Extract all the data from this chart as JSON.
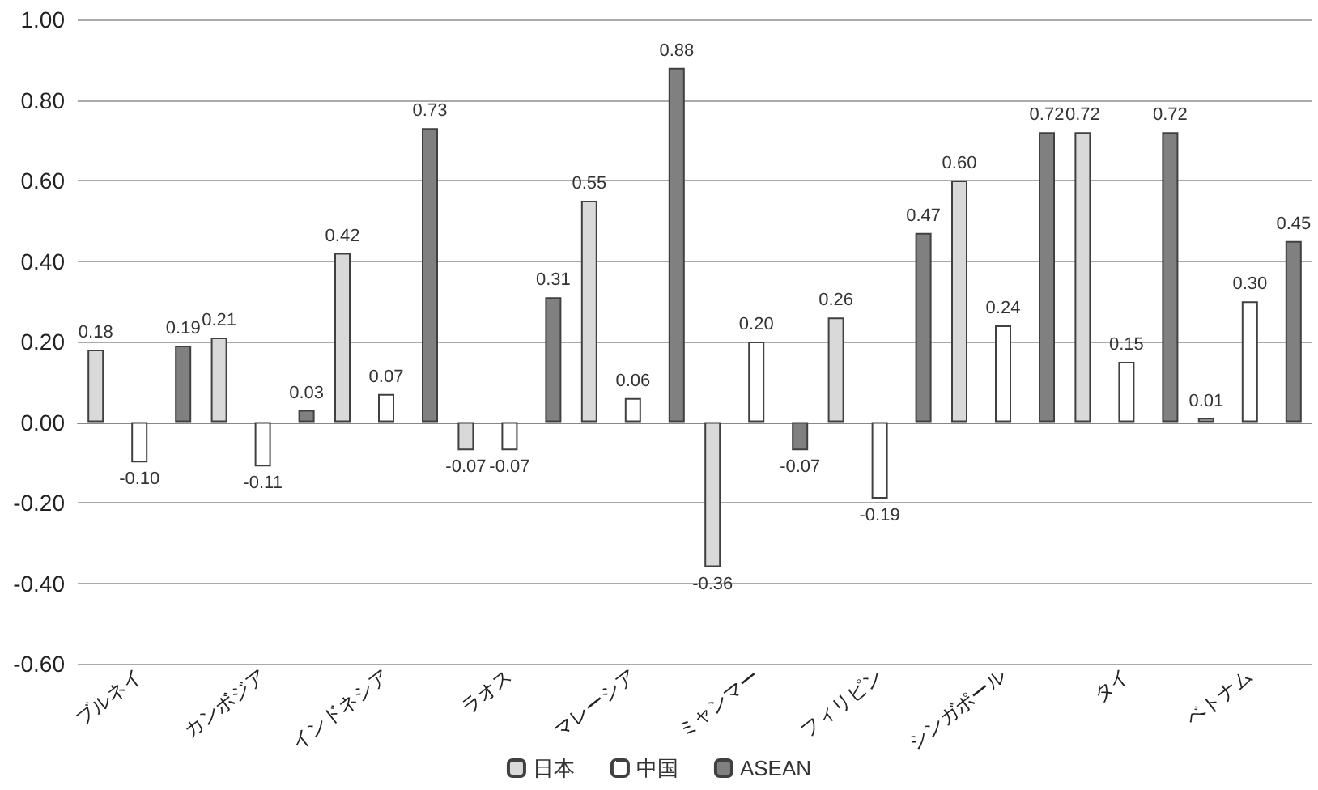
{
  "chart_data": {
    "type": "bar",
    "categories": [
      "ブルネイ",
      "カンボジア",
      "インドネシア",
      "ラオス",
      "マレーシア",
      "ミャンマー",
      "フィリピン",
      "シンガポール",
      "タイ",
      "ベトナム"
    ],
    "series": [
      {
        "name": "日本",
        "color": "#d9d9d9",
        "values": [
          0.18,
          0.21,
          0.42,
          -0.07,
          0.55,
          -0.36,
          0.26,
          0.6,
          0.72,
          0.01
        ],
        "value_labels": [
          "0.18",
          "0.21",
          "0.42",
          "-0.07",
          "0.55",
          "-0.36",
          "0.26",
          "0.60",
          "0.72",
          "0.01"
        ]
      },
      {
        "name": "中国",
        "color": "#ffffff",
        "values": [
          -0.1,
          -0.11,
          0.07,
          -0.07,
          0.06,
          0.2,
          -0.19,
          0.24,
          0.15,
          0.3
        ],
        "value_labels": [
          "-0.10",
          "-0.11",
          "0.07",
          "-0.07",
          "0.06",
          "0.20",
          "-0.19",
          "0.24",
          "0.15",
          "0.30"
        ]
      },
      {
        "name": "ASEAN",
        "color": "#808080",
        "values": [
          0.19,
          0.03,
          0.73,
          0.31,
          0.88,
          -0.07,
          0.47,
          0.72,
          0.72,
          0.45
        ],
        "value_labels": [
          "0.19",
          "0.03",
          "0.73",
          "0.31",
          "0.88",
          "-0.07",
          "0.47",
          "0.72",
          "0.72",
          "0.45"
        ]
      }
    ],
    "ylim": [
      -0.6,
      1.0
    ],
    "yticks": [
      {
        "value": -0.6,
        "label": "-0.60"
      },
      {
        "value": -0.4,
        "label": "-0.40"
      },
      {
        "value": -0.2,
        "label": "-0.20"
      },
      {
        "value": 0,
        "label": "0.00"
      },
      {
        "value": 0.2,
        "label": "0.20"
      },
      {
        "value": 0.4,
        "label": "0.40"
      },
      {
        "value": 0.6,
        "label": "0.60"
      },
      {
        "value": 0.8,
        "label": "0.80"
      },
      {
        "value": 1.0,
        "label": "1.00"
      }
    ],
    "grid": "y",
    "legend": "bottom"
  }
}
